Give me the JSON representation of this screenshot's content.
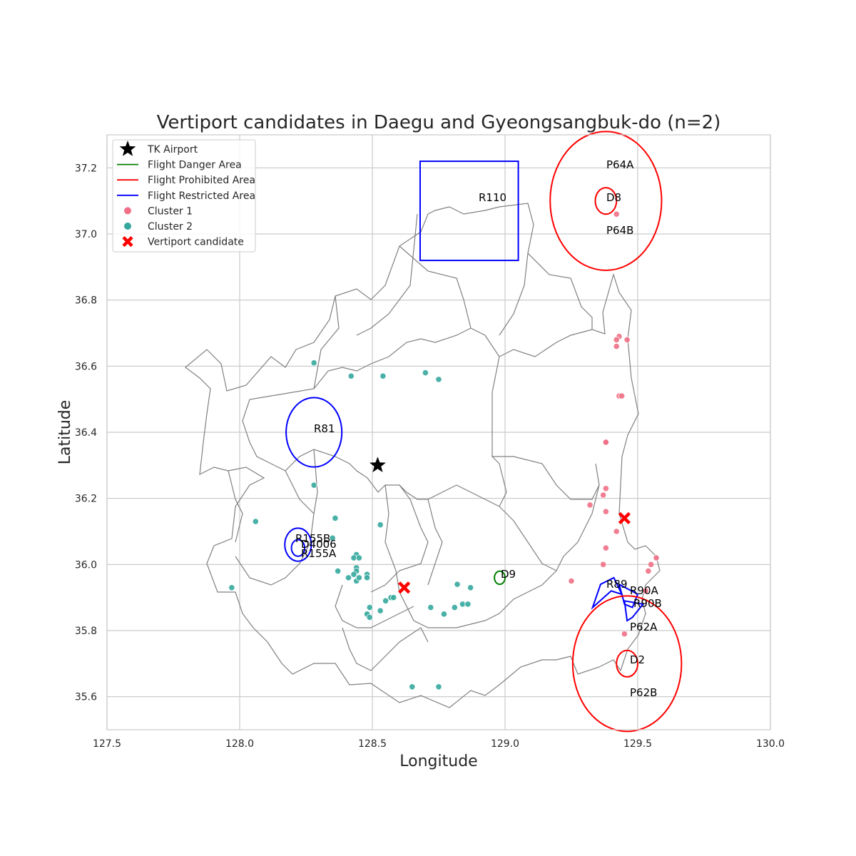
{
  "chart_data": {
    "type": "scatter",
    "title": "Vertiport candidates in Daegu and Gyeongsangbuk-do (n=2)",
    "xlabel": "Longitude",
    "ylabel": "Latitude",
    "xlim": [
      127.5,
      130.0
    ],
    "ylim": [
      35.5,
      37.3
    ],
    "xticks": [
      127.5,
      128.0,
      128.5,
      129.0,
      129.5,
      130.0
    ],
    "yticks": [
      35.6,
      35.8,
      36.0,
      36.2,
      36.4,
      36.6,
      36.8,
      37.0,
      37.2
    ],
    "grid": true,
    "legend_position": "top-left",
    "legend": [
      {
        "label": "TK Airport",
        "marker": "star",
        "color": "#000000"
      },
      {
        "label": "Flight Danger Area",
        "marker": "line",
        "color": "#008000"
      },
      {
        "label": "Flight Prohibited Area",
        "marker": "line",
        "color": "#ff0000"
      },
      {
        "label": "Flight Restricted Area",
        "marker": "line",
        "color": "#0000ff"
      },
      {
        "label": "Cluster 1",
        "marker": "dot",
        "color": "#f07086"
      },
      {
        "label": "Cluster 2",
        "marker": "dot",
        "color": "#35a89d"
      },
      {
        "label": "Vertiport candidate",
        "marker": "x",
        "color": "#ff0000"
      }
    ],
    "tk_airport": {
      "lon": 128.52,
      "lat": 36.3
    },
    "vertiport_candidates": [
      {
        "lon": 128.62,
        "lat": 35.93
      },
      {
        "lon": 129.45,
        "lat": 36.14
      }
    ],
    "clusters": [
      {
        "name": "Cluster 1",
        "color": "#f07086",
        "points": [
          [
            129.42,
            37.06
          ],
          [
            129.43,
            36.69
          ],
          [
            129.42,
            36.68
          ],
          [
            129.42,
            36.66
          ],
          [
            129.46,
            36.68
          ],
          [
            129.43,
            36.51
          ],
          [
            129.44,
            36.51
          ],
          [
            129.38,
            36.37
          ],
          [
            129.38,
            36.37
          ],
          [
            129.38,
            36.23
          ],
          [
            129.37,
            36.21
          ],
          [
            129.32,
            36.18
          ],
          [
            129.38,
            36.16
          ],
          [
            129.42,
            36.1
          ],
          [
            129.38,
            36.05
          ],
          [
            129.37,
            36.0
          ],
          [
            129.25,
            35.95
          ],
          [
            129.57,
            36.02
          ],
          [
            129.55,
            36.0
          ],
          [
            129.54,
            35.98
          ],
          [
            129.53,
            35.92
          ],
          [
            129.45,
            35.79
          ]
        ]
      },
      {
        "name": "Cluster 2",
        "color": "#35a89d",
        "points": [
          [
            128.28,
            36.61
          ],
          [
            128.42,
            36.57
          ],
          [
            128.54,
            36.57
          ],
          [
            128.7,
            36.58
          ],
          [
            128.75,
            36.56
          ],
          [
            128.28,
            36.24
          ],
          [
            128.06,
            36.13
          ],
          [
            128.36,
            36.14
          ],
          [
            128.53,
            36.12
          ],
          [
            128.35,
            36.08
          ],
          [
            128.44,
            36.03
          ],
          [
            128.43,
            36.02
          ],
          [
            128.45,
            36.02
          ],
          [
            128.44,
            35.99
          ],
          [
            128.44,
            35.98
          ],
          [
            128.43,
            35.97
          ],
          [
            128.37,
            35.98
          ],
          [
            128.41,
            35.96
          ],
          [
            128.44,
            35.95
          ],
          [
            128.45,
            35.96
          ],
          [
            128.48,
            35.97
          ],
          [
            128.48,
            35.96
          ],
          [
            128.49,
            35.87
          ],
          [
            128.48,
            35.85
          ],
          [
            128.49,
            35.84
          ],
          [
            128.53,
            35.86
          ],
          [
            128.55,
            35.89
          ],
          [
            128.57,
            35.9
          ],
          [
            128.58,
            35.9
          ],
          [
            128.72,
            35.87
          ],
          [
            128.77,
            35.85
          ],
          [
            128.81,
            35.87
          ],
          [
            128.82,
            35.94
          ],
          [
            128.84,
            35.88
          ],
          [
            128.86,
            35.88
          ],
          [
            128.87,
            35.93
          ],
          [
            127.97,
            35.93
          ],
          [
            128.65,
            35.63
          ],
          [
            128.75,
            35.63
          ]
        ]
      }
    ],
    "airspace_areas": [
      {
        "label": "P64A",
        "type": "prohibited",
        "shape": "label",
        "lon": 129.38,
        "lat": 37.2
      },
      {
        "label": "P64B",
        "type": "prohibited",
        "shape": "label",
        "lon": 129.38,
        "lat": 37.0
      },
      {
        "label": "P64",
        "type": "prohibited",
        "shape": "circle",
        "lon": 129.38,
        "lat": 37.1,
        "radius_deg": 0.21
      },
      {
        "label": "D8",
        "type": "prohibited",
        "shape": "circle",
        "lon": 129.38,
        "lat": 37.1,
        "radius_deg": 0.04
      },
      {
        "label": "R110",
        "type": "restricted",
        "shape": "rect",
        "lon_min": 128.68,
        "lon_max": 129.05,
        "lat_min": 36.92,
        "lat_max": 37.22
      },
      {
        "label": "R81",
        "type": "restricted",
        "shape": "circle",
        "lon": 128.28,
        "lat": 36.4,
        "radius_deg": 0.105
      },
      {
        "label": "R155B",
        "type": "restricted",
        "shape": "circle",
        "lon": 128.22,
        "lat": 36.06,
        "radius_deg": 0.05
      },
      {
        "label": "D4006",
        "type": "restricted",
        "shape": "circle",
        "lon": 128.22,
        "lat": 36.05,
        "radius_deg": 0.025
      },
      {
        "label": "R155A",
        "type": "restricted",
        "shape": "label",
        "lon": 128.23,
        "lat": 36.02
      },
      {
        "label": "D9",
        "type": "danger",
        "shape": "circle",
        "lon": 128.98,
        "lat": 35.96,
        "radius_deg": 0.02
      },
      {
        "label": "R89",
        "type": "restricted",
        "shape": "polygon",
        "points": [
          [
            129.33,
            35.87
          ],
          [
            129.36,
            35.94
          ],
          [
            129.41,
            35.96
          ],
          [
            129.44,
            35.91
          ],
          [
            129.4,
            35.92
          ]
        ]
      },
      {
        "label": "R90A",
        "type": "restricted",
        "shape": "polygon",
        "points": [
          [
            129.43,
            35.94
          ],
          [
            129.5,
            35.91
          ],
          [
            129.48,
            35.87
          ],
          [
            129.45,
            35.88
          ]
        ]
      },
      {
        "label": "R90B",
        "type": "restricted",
        "shape": "polygon",
        "points": [
          [
            129.45,
            35.89
          ],
          [
            129.52,
            35.88
          ],
          [
            129.48,
            35.84
          ],
          [
            129.46,
            35.83
          ]
        ]
      },
      {
        "label": "P62A",
        "type": "prohibited",
        "shape": "label",
        "lon": 129.46,
        "lat": 35.8
      },
      {
        "label": "P62B",
        "type": "prohibited",
        "shape": "label",
        "lon": 129.46,
        "lat": 35.61
      },
      {
        "label": "P62",
        "type": "prohibited",
        "shape": "circle",
        "lon": 129.46,
        "lat": 35.7,
        "radius_deg": 0.205
      },
      {
        "label": "D2",
        "type": "prohibited",
        "shape": "circle",
        "lon": 129.46,
        "lat": 35.7,
        "radius_deg": 0.04
      }
    ],
    "boundary_color": "#808080"
  }
}
